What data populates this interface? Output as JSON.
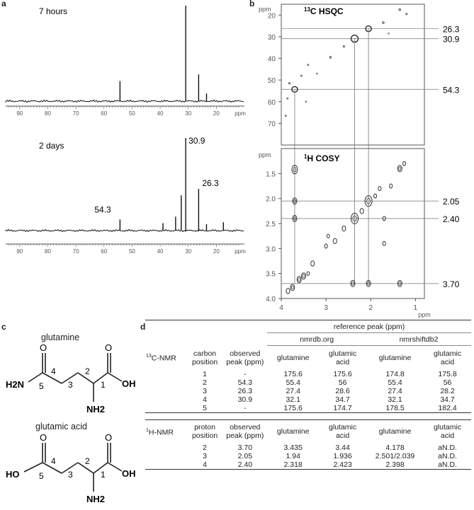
{
  "panel_labels": {
    "a": "a",
    "b": "b",
    "c": "c",
    "d": "d"
  },
  "chart_data": [
    {
      "type": "line",
      "panel": "a-top",
      "title": "7 hours",
      "xlabel": "ppm",
      "xlim": [
        95,
        10
      ],
      "x_ticks": [
        90,
        80,
        70,
        60,
        50,
        40,
        30,
        20
      ],
      "peaks": [
        {
          "x": 54.3,
          "height": 0.21
        },
        {
          "x": 30.9,
          "height": 1.0
        },
        {
          "x": 26.3,
          "height": 0.28
        },
        {
          "x": 23.5,
          "height": 0.08
        }
      ],
      "peak_labels": []
    },
    {
      "type": "line",
      "panel": "a-bottom",
      "title": "2 days",
      "xlabel": "ppm",
      "xlim": [
        95,
        10
      ],
      "x_ticks": [
        90,
        80,
        70,
        60,
        50,
        40,
        30,
        20
      ],
      "peaks": [
        {
          "x": 54.3,
          "height": 0.12
        },
        {
          "x": 39.0,
          "height": 0.08
        },
        {
          "x": 34.5,
          "height": 0.15
        },
        {
          "x": 32.5,
          "height": 0.38
        },
        {
          "x": 30.9,
          "height": 1.0
        },
        {
          "x": 26.3,
          "height": 0.45
        },
        {
          "x": 23.5,
          "height": 0.07
        },
        {
          "x": 17.5,
          "height": 0.09
        }
      ],
      "peak_labels": [
        {
          "x": 30.9,
          "text": "30.9"
        },
        {
          "x": 26.3,
          "text": "26.3"
        },
        {
          "x": 54.3,
          "text": "54.3"
        }
      ]
    },
    {
      "type": "scatter",
      "panel": "b-hsqc",
      "title": "13C HSQC",
      "title_sup": "13",
      "title_rest": "C HSQC",
      "ylabel": "ppm",
      "xlim": [
        4.0,
        0.8
      ],
      "ylim": [
        15,
        80
      ],
      "y_ticks": [
        20,
        30,
        40,
        50,
        60,
        70
      ],
      "ref_lines": [
        26.3,
        30.9,
        54.3
      ],
      "ref_labels": [
        "26.3",
        "30.9",
        "54.3"
      ],
      "points": [
        {
          "x": 3.7,
          "y": 54.3,
          "r": 4
        },
        {
          "x": 2.36,
          "y": 30.9,
          "r": 5
        },
        {
          "x": 2.05,
          "y": 26.3,
          "r": 4
        },
        {
          "x": 1.35,
          "y": 17.5,
          "r": 1.6
        },
        {
          "x": 1.2,
          "y": 19.5,
          "r": 1.4
        },
        {
          "x": 1.72,
          "y": 23.5,
          "r": 1.6
        },
        {
          "x": 2.6,
          "y": 34.5,
          "r": 1.4
        },
        {
          "x": 2.9,
          "y": 39.5,
          "r": 1.6
        },
        {
          "x": 3.4,
          "y": 43.0,
          "r": 1.2
        },
        {
          "x": 3.55,
          "y": 48.0,
          "r": 1.2
        },
        {
          "x": 3.82,
          "y": 51.5,
          "r": 1.4
        },
        {
          "x": 3.86,
          "y": 58.5,
          "r": 1.2
        },
        {
          "x": 3.9,
          "y": 66.5,
          "r": 1.2
        },
        {
          "x": 3.2,
          "y": 47.0,
          "r": 1.0
        },
        {
          "x": 3.45,
          "y": 60.0,
          "r": 1.0
        },
        {
          "x": 1.6,
          "y": 28.5,
          "r": 1.0
        }
      ]
    },
    {
      "type": "scatter",
      "panel": "b-cosy",
      "title": "1H COSY",
      "title_sup": "1",
      "title_rest": "H COSY",
      "xlabel": "ppm",
      "ylabel": "ppm",
      "xlim": [
        4.0,
        0.8
      ],
      "ylim": [
        1.0,
        4.0
      ],
      "x_ticks": [
        4,
        3,
        2,
        1
      ],
      "y_ticks": [
        "1.5",
        "2.0",
        "2.5",
        "3.0",
        "3.5",
        "4.0"
      ],
      "ref_lines": [
        2.05,
        2.4,
        3.7
      ],
      "ref_labels": [
        "2.05",
        "2.40",
        "3.70"
      ],
      "points": [
        {
          "x": 3.7,
          "y": 1.42,
          "r": 4
        },
        {
          "x": 3.7,
          "y": 2.05,
          "r": 3
        },
        {
          "x": 3.7,
          "y": 2.4,
          "r": 3
        },
        {
          "x": 2.36,
          "y": 2.4,
          "r": 5
        },
        {
          "x": 2.05,
          "y": 2.05,
          "r": 5
        },
        {
          "x": 2.05,
          "y": 3.7,
          "r": 3
        },
        {
          "x": 2.4,
          "y": 3.7,
          "r": 3
        },
        {
          "x": 1.35,
          "y": 1.4,
          "r": 3
        },
        {
          "x": 1.35,
          "y": 3.7,
          "r": 3
        },
        {
          "x": 1.7,
          "y": 2.9,
          "r": 2
        },
        {
          "x": 1.7,
          "y": 2.4,
          "r": 2
        },
        {
          "x": 1.55,
          "y": 1.75,
          "r": 2
        },
        {
          "x": 2.8,
          "y": 2.85,
          "r": 2.5
        },
        {
          "x": 3.0,
          "y": 2.95,
          "r": 2
        },
        {
          "x": 2.6,
          "y": 2.6,
          "r": 2.5
        },
        {
          "x": 2.2,
          "y": 2.25,
          "r": 2.5
        },
        {
          "x": 1.9,
          "y": 1.95,
          "r": 2
        },
        {
          "x": 1.8,
          "y": 1.8,
          "r": 2
        },
        {
          "x": 3.3,
          "y": 3.3,
          "r": 2.5
        },
        {
          "x": 3.5,
          "y": 3.55,
          "r": 3
        },
        {
          "x": 3.6,
          "y": 3.62,
          "r": 3
        },
        {
          "x": 3.85,
          "y": 3.85,
          "r": 2.5
        },
        {
          "x": 3.75,
          "y": 3.78,
          "r": 3
        },
        {
          "x": 1.25,
          "y": 1.3,
          "r": 2
        },
        {
          "x": 2.95,
          "y": 2.75,
          "r": 1.8
        },
        {
          "x": 3.4,
          "y": 3.5,
          "r": 1.8
        }
      ]
    }
  ],
  "structures": {
    "glutamine": {
      "name": "glutamine",
      "atoms": {
        "o_top_left": "O",
        "o_top_right": "O",
        "nh2_left": "H2N",
        "oh": "OH",
        "nh2_bottom": "NH2"
      },
      "numbers": [
        "5",
        "4",
        "3",
        "2",
        "1"
      ]
    },
    "glutamic_acid": {
      "name": "glutamic acid",
      "atoms": {
        "o_top_left": "O",
        "o_top_right": "O",
        "ho_left": "HO",
        "oh": "OH",
        "nh2_bottom": "NH2"
      },
      "numbers": [
        "5",
        "4",
        "3",
        "2",
        "1"
      ]
    }
  },
  "table": {
    "reference_header": "reference peak (ppm)",
    "db1": "nmrdb.org",
    "db2": "nmrshiftdb2",
    "c13": {
      "section": "13C-NMR",
      "section_sup": "13",
      "section_rest": "C-NMR",
      "col_position": [
        "carbon",
        "position"
      ],
      "col_observed": [
        "observed",
        "peak (ppm)"
      ],
      "sub_cols": [
        [
          "glutamine"
        ],
        [
          "glutamic",
          "acid"
        ],
        [
          "glutamine"
        ],
        [
          "glutamic",
          "acid"
        ]
      ],
      "rows": [
        [
          "1",
          "-",
          "175.6",
          "175.6",
          "174.8",
          "175.8"
        ],
        [
          "2",
          "54.3",
          "55.4",
          "56",
          "55.4",
          "56"
        ],
        [
          "3",
          "26.3",
          "27.4",
          "28.6",
          "27.4",
          "28.2"
        ],
        [
          "4",
          "30.9",
          "32.1",
          "34.7",
          "32.1",
          "34.7"
        ],
        [
          "5",
          "-",
          "175.6",
          "174.7",
          "178.5",
          "182.4"
        ]
      ]
    },
    "h1": {
      "section": "1H-NMR",
      "section_sup": "1",
      "section_rest": "H-NMR",
      "col_position": [
        "proton",
        "position"
      ],
      "col_observed": [
        "observed",
        "peak (ppm)"
      ],
      "sub_cols": [
        [
          "glutamine"
        ],
        [
          "glutamic",
          "acid"
        ],
        [
          "glutamine"
        ],
        [
          "glutamic",
          "acid"
        ]
      ],
      "rows": [
        [
          "2",
          "3.70",
          "3.435",
          "3.44",
          "4.178",
          "aN.D."
        ],
        [
          "3",
          "2.05",
          "1.94",
          "1.936",
          "2.501/2.039",
          "aN.D."
        ],
        [
          "4",
          "2.40",
          "2.318",
          "2.423",
          "2.398",
          "aN.D."
        ]
      ]
    }
  }
}
